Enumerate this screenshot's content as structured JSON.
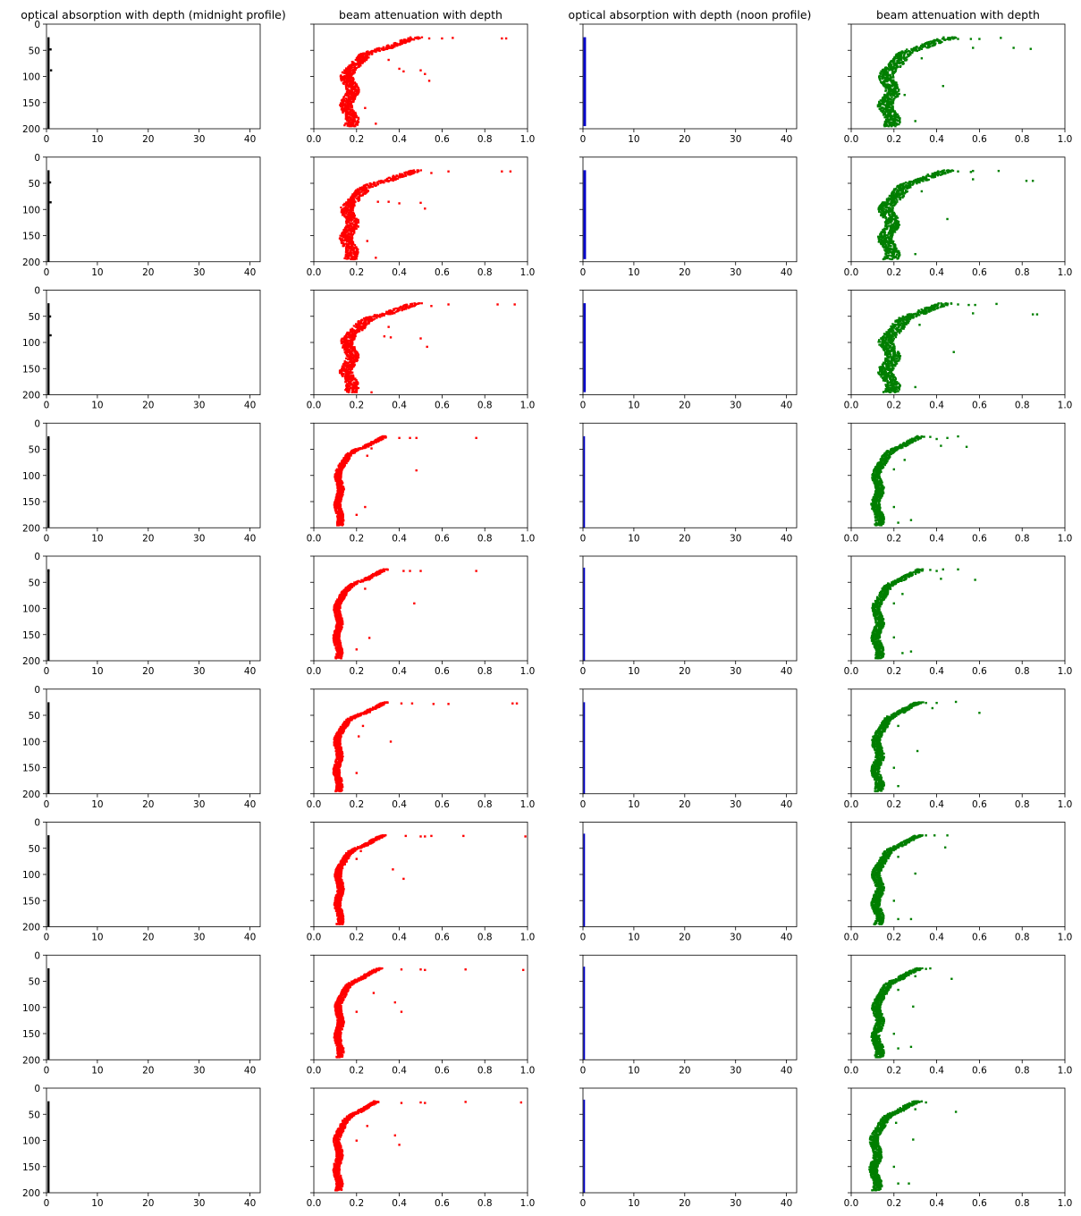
{
  "figure": {
    "column_titles": [
      "optical absorption with depth (midnight profile)",
      "beam attenuation with depth",
      "optical absorption with depth (noon profile)",
      "beam attenuation with depth"
    ],
    "rows": 9,
    "cols": 4
  },
  "colors": {
    "midnight_absorption": "#000000",
    "midnight_attenuation": "#ff0000",
    "noon_absorption": "#0000cc",
    "noon_attenuation": "#007f00",
    "axes": "#000000",
    "background": "#ffffff"
  },
  "axes": {
    "y_inverted": true,
    "y_range": [
      200,
      0
    ],
    "y_ticks": [
      "0",
      "50",
      "100",
      "150",
      "200"
    ],
    "y_ticks_shown_on": "every column",
    "absorption_x_range": [
      0,
      42
    ],
    "absorption_x_ticks": [
      "0",
      "10",
      "20",
      "30",
      "40"
    ],
    "attenuation_x_range": [
      0,
      1.0
    ],
    "attenuation_x_ticks": [
      "0.0",
      "0.2",
      "0.4",
      "0.6",
      "0.8",
      "1.0"
    ],
    "grid": false,
    "marker": "small square"
  },
  "chart_data": [
    {
      "type": "scatter",
      "column": "midnight absorption",
      "title": "optical absorption with depth (midnight profile)",
      "xlim": [
        0,
        42
      ],
      "ylim": [
        200,
        0
      ],
      "profile": {
        "depth": [
          25,
          200
        ],
        "x_min": 0.2,
        "x_max": 0.6
      },
      "rows": [
        {
          "row": 1,
          "outliers": [
            [
              0.8,
              48
            ],
            [
              0.9,
              88
            ]
          ]
        },
        {
          "row": 2,
          "outliers": [
            [
              0.7,
              48
            ],
            [
              0.8,
              86
            ]
          ]
        },
        {
          "row": 3,
          "outliers": [
            [
              0.7,
              50
            ],
            [
              0.8,
              86
            ]
          ]
        },
        {
          "row": 4,
          "outliers": [
            [
              0.4,
              30
            ]
          ]
        },
        {
          "row": 5,
          "outliers": [
            [
              0.4,
              28
            ]
          ]
        },
        {
          "row": 6,
          "outliers": []
        },
        {
          "row": 7,
          "outliers": []
        },
        {
          "row": 8,
          "outliers": []
        },
        {
          "row": 9,
          "outliers": []
        }
      ]
    },
    {
      "type": "scatter",
      "column": "midnight attenuation",
      "title": "beam attenuation with depth",
      "xlim": [
        0,
        1.0
      ],
      "ylim": [
        200,
        0
      ],
      "rows": [
        {
          "row": 1,
          "surface": 0.47,
          "deep": 0.16,
          "band": 0.06,
          "outliers": [
            [
              0.54,
              27
            ],
            [
              0.6,
              27
            ],
            [
              0.65,
              26
            ],
            [
              0.88,
              27
            ],
            [
              0.9,
              27
            ],
            [
              0.35,
              68
            ],
            [
              0.4,
              85
            ],
            [
              0.42,
              90
            ],
            [
              0.5,
              88
            ],
            [
              0.52,
              95
            ],
            [
              0.54,
              108
            ],
            [
              0.24,
              160
            ],
            [
              0.29,
              190
            ]
          ]
        },
        {
          "row": 2,
          "surface": 0.47,
          "deep": 0.16,
          "band": 0.06,
          "outliers": [
            [
              0.55,
              30
            ],
            [
              0.63,
              27
            ],
            [
              0.88,
              27
            ],
            [
              0.92,
              27
            ],
            [
              0.3,
              85
            ],
            [
              0.35,
              85
            ],
            [
              0.4,
              88
            ],
            [
              0.5,
              87
            ],
            [
              0.52,
              98
            ],
            [
              0.25,
              160
            ],
            [
              0.29,
              192
            ]
          ]
        },
        {
          "row": 3,
          "surface": 0.47,
          "deep": 0.16,
          "band": 0.06,
          "outliers": [
            [
              0.55,
              30
            ],
            [
              0.63,
              27
            ],
            [
              0.86,
              27
            ],
            [
              0.94,
              27
            ],
            [
              0.35,
              70
            ],
            [
              0.33,
              88
            ],
            [
              0.36,
              90
            ],
            [
              0.5,
              92
            ],
            [
              0.53,
              108
            ],
            [
              0.27,
              195
            ]
          ]
        },
        {
          "row": 4,
          "surface": 0.33,
          "deep": 0.115,
          "band": 0.03,
          "outliers": [
            [
              0.4,
              28
            ],
            [
              0.45,
              28
            ],
            [
              0.48,
              28
            ],
            [
              0.76,
              28
            ],
            [
              0.27,
              48
            ],
            [
              0.25,
              62
            ],
            [
              0.48,
              90
            ],
            [
              0.24,
              160
            ],
            [
              0.2,
              175
            ]
          ]
        },
        {
          "row": 5,
          "surface": 0.33,
          "deep": 0.11,
          "band": 0.03,
          "outliers": [
            [
              0.42,
              28
            ],
            [
              0.45,
              28
            ],
            [
              0.5,
              28
            ],
            [
              0.76,
              28
            ],
            [
              0.24,
              62
            ],
            [
              0.47,
              90
            ],
            [
              0.26,
              156
            ],
            [
              0.2,
              178
            ]
          ]
        },
        {
          "row": 6,
          "surface": 0.33,
          "deep": 0.11,
          "band": 0.03,
          "outliers": [
            [
              0.41,
              27
            ],
            [
              0.46,
              27
            ],
            [
              0.56,
              28
            ],
            [
              0.63,
              28
            ],
            [
              0.93,
              27
            ],
            [
              0.95,
              27
            ],
            [
              0.23,
              70
            ],
            [
              0.21,
              90
            ],
            [
              0.36,
              100
            ],
            [
              0.2,
              160
            ]
          ]
        },
        {
          "row": 7,
          "surface": 0.32,
          "deep": 0.115,
          "band": 0.03,
          "outliers": [
            [
              0.43,
              26
            ],
            [
              0.5,
              27
            ],
            [
              0.52,
              27
            ],
            [
              0.55,
              26
            ],
            [
              0.7,
              26
            ],
            [
              0.99,
              27
            ],
            [
              0.22,
              55
            ],
            [
              0.2,
              70
            ],
            [
              0.37,
              90
            ],
            [
              0.42,
              108
            ]
          ]
        },
        {
          "row": 8,
          "surface": 0.3,
          "deep": 0.115,
          "band": 0.03,
          "outliers": [
            [
              0.41,
              27
            ],
            [
              0.5,
              27
            ],
            [
              0.52,
              28
            ],
            [
              0.71,
              27
            ],
            [
              0.98,
              28
            ],
            [
              0.28,
              72
            ],
            [
              0.38,
              90
            ],
            [
              0.41,
              108
            ],
            [
              0.2,
              108
            ]
          ]
        },
        {
          "row": 9,
          "surface": 0.29,
          "deep": 0.11,
          "band": 0.03,
          "outliers": [
            [
              0.41,
              28
            ],
            [
              0.5,
              27
            ],
            [
              0.52,
              28
            ],
            [
              0.71,
              26
            ],
            [
              0.97,
              27
            ],
            [
              0.25,
              72
            ],
            [
              0.38,
              90
            ],
            [
              0.4,
              108
            ],
            [
              0.2,
              100
            ]
          ]
        }
      ]
    },
    {
      "type": "scatter",
      "column": "noon absorption",
      "title": "optical absorption with depth (noon profile)",
      "xlim": [
        0,
        42
      ],
      "ylim": [
        200,
        0
      ],
      "profile": {
        "depth": [
          25,
          200
        ],
        "x_min": 0.1,
        "x_max": 0.6
      },
      "rows": [
        {
          "row": 1,
          "width": 0.5,
          "top": 25,
          "bottom": 195
        },
        {
          "row": 2,
          "width": 0.5,
          "top": 25,
          "bottom": 195
        },
        {
          "row": 3,
          "width": 0.45,
          "top": 25,
          "bottom": 195
        },
        {
          "row": 4,
          "width": 0.3,
          "top": 25,
          "bottom": 200
        },
        {
          "row": 5,
          "width": 0.3,
          "top": 22,
          "bottom": 200
        },
        {
          "row": 6,
          "width": 0.3,
          "top": 25,
          "bottom": 200
        },
        {
          "row": 7,
          "width": 0.3,
          "top": 22,
          "bottom": 200
        },
        {
          "row": 8,
          "width": 0.3,
          "top": 22,
          "bottom": 200
        },
        {
          "row": 9,
          "width": 0.3,
          "top": 22,
          "bottom": 200
        }
      ]
    },
    {
      "type": "scatter",
      "column": "noon attenuation",
      "title": "beam attenuation with depth",
      "xlim": [
        0,
        1.0
      ],
      "ylim": [
        200,
        0
      ],
      "rows": [
        {
          "row": 1,
          "surface": 0.45,
          "deep": 0.17,
          "band": 0.07,
          "outliers": [
            [
              0.5,
              28
            ],
            [
              0.56,
              28
            ],
            [
              0.6,
              28
            ],
            [
              0.7,
              26
            ],
            [
              0.76,
              45
            ],
            [
              0.84,
              47
            ],
            [
              0.57,
              45
            ],
            [
              0.33,
              65
            ],
            [
              0.43,
              118
            ],
            [
              0.25,
              135
            ],
            [
              0.3,
              185
            ]
          ]
        },
        {
          "row": 2,
          "surface": 0.44,
          "deep": 0.17,
          "band": 0.07,
          "outliers": [
            [
              0.5,
              27
            ],
            [
              0.56,
              28
            ],
            [
              0.57,
              26
            ],
            [
              0.69,
              26
            ],
            [
              0.82,
              45
            ],
            [
              0.85,
              45
            ],
            [
              0.57,
              42
            ],
            [
              0.33,
              65
            ],
            [
              0.45,
              118
            ],
            [
              0.3,
              185
            ]
          ]
        },
        {
          "row": 3,
          "surface": 0.43,
          "deep": 0.17,
          "band": 0.07,
          "outliers": [
            [
              0.5,
              27
            ],
            [
              0.55,
              28
            ],
            [
              0.58,
              28
            ],
            [
              0.68,
              26
            ],
            [
              0.85,
              46
            ],
            [
              0.87,
              46
            ],
            [
              0.57,
              44
            ],
            [
              0.32,
              66
            ],
            [
              0.48,
              118
            ],
            [
              0.3,
              185
            ]
          ]
        },
        {
          "row": 4,
          "surface": 0.32,
          "deep": 0.12,
          "band": 0.04,
          "outliers": [
            [
              0.37,
              26
            ],
            [
              0.4,
              30
            ],
            [
              0.45,
              28
            ],
            [
              0.5,
              25
            ],
            [
              0.54,
              45
            ],
            [
              0.42,
              43
            ],
            [
              0.25,
              70
            ],
            [
              0.2,
              88
            ],
            [
              0.2,
              160
            ],
            [
              0.22,
              190
            ],
            [
              0.28,
              185
            ]
          ]
        },
        {
          "row": 5,
          "surface": 0.32,
          "deep": 0.12,
          "band": 0.04,
          "outliers": [
            [
              0.37,
              26
            ],
            [
              0.4,
              28
            ],
            [
              0.43,
              25
            ],
            [
              0.5,
              25
            ],
            [
              0.58,
              45
            ],
            [
              0.42,
              43
            ],
            [
              0.24,
              72
            ],
            [
              0.2,
              90
            ],
            [
              0.2,
              155
            ],
            [
              0.24,
              185
            ],
            [
              0.28,
              182
            ]
          ]
        },
        {
          "row": 6,
          "surface": 0.31,
          "deep": 0.12,
          "band": 0.04,
          "outliers": [
            [
              0.35,
              26
            ],
            [
              0.4,
              26
            ],
            [
              0.49,
              24
            ],
            [
              0.6,
              45
            ],
            [
              0.38,
              36
            ],
            [
              0.22,
              70
            ],
            [
              0.31,
              118
            ],
            [
              0.2,
              150
            ],
            [
              0.22,
              185
            ]
          ]
        },
        {
          "row": 7,
          "surface": 0.31,
          "deep": 0.12,
          "band": 0.04,
          "outliers": [
            [
              0.35,
              25
            ],
            [
              0.39,
              25
            ],
            [
              0.45,
              25
            ],
            [
              0.44,
              48
            ],
            [
              0.22,
              66
            ],
            [
              0.3,
              98
            ],
            [
              0.2,
              150
            ],
            [
              0.22,
              185
            ],
            [
              0.28,
              185
            ]
          ]
        },
        {
          "row": 8,
          "surface": 0.31,
          "deep": 0.12,
          "band": 0.04,
          "outliers": [
            [
              0.35,
              26
            ],
            [
              0.37,
              25
            ],
            [
              0.47,
              45
            ],
            [
              0.3,
              40
            ],
            [
              0.22,
              66
            ],
            [
              0.29,
              98
            ],
            [
              0.2,
              150
            ],
            [
              0.22,
              178
            ],
            [
              0.28,
              175
            ]
          ]
        },
        {
          "row": 9,
          "surface": 0.3,
          "deep": 0.11,
          "band": 0.04,
          "outliers": [
            [
              0.33,
              25
            ],
            [
              0.35,
              27
            ],
            [
              0.49,
              45
            ],
            [
              0.3,
              40
            ],
            [
              0.21,
              66
            ],
            [
              0.29,
              98
            ],
            [
              0.2,
              150
            ],
            [
              0.22,
              182
            ],
            [
              0.27,
              182
            ]
          ]
        }
      ]
    }
  ]
}
